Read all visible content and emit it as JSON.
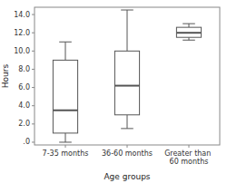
{
  "chart_data": {
    "type": "box",
    "xlabel": "Age groups",
    "ylabel": "Hours",
    "categories": [
      "7-35 months",
      "36-60 months",
      "Greater than 60 months"
    ],
    "boxes": [
      {
        "q1": 1.0,
        "median": 3.5,
        "q3": 9.0,
        "whislo": 0.0,
        "whishi": 11.0
      },
      {
        "q1": 3.0,
        "median": 6.2,
        "q3": 10.0,
        "whislo": 1.5,
        "whishi": 14.5
      },
      {
        "q1": 11.5,
        "median": 12.0,
        "q3": 12.6,
        "whislo": 11.2,
        "whishi": 13.0
      }
    ],
    "ylim": [
      -0.3,
      14.8
    ],
    "yticks": [
      {
        "value": 0,
        "label": ".0"
      },
      {
        "value": 2.0,
        "label": "2.0"
      },
      {
        "value": 4.0,
        "label": "4.0"
      },
      {
        "value": 6.0,
        "label": "6.0"
      },
      {
        "value": 8.0,
        "label": "8.0"
      },
      {
        "value": 10.0,
        "label": "10.0"
      },
      {
        "value": 12.0,
        "label": "12.0"
      },
      {
        "value": 14.0,
        "label": "14.0"
      }
    ],
    "color": "#555555"
  }
}
